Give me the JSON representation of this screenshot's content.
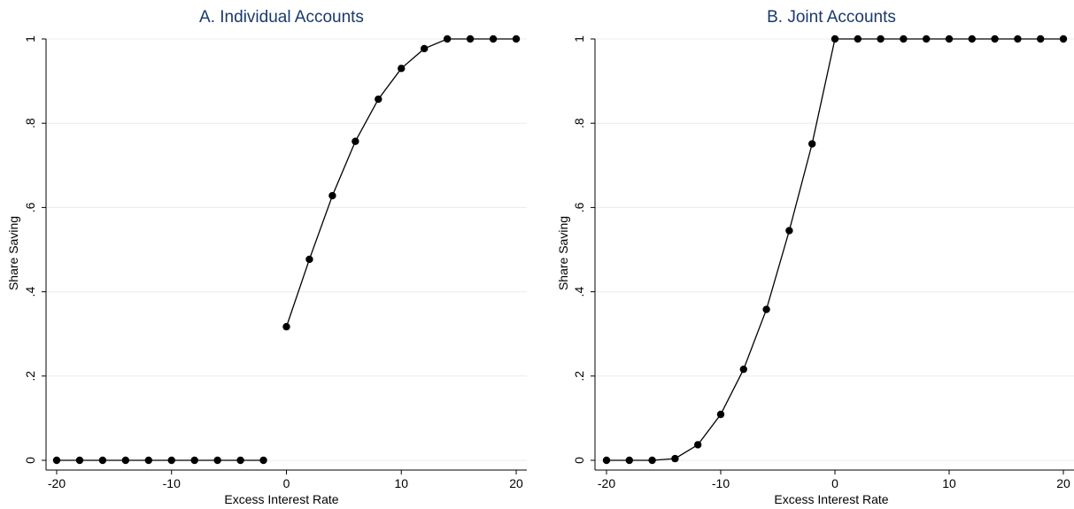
{
  "colors": {
    "title": "#1a3a6b",
    "grid": "#e8ecef",
    "series": "#000000",
    "axis": "#000000"
  },
  "chart_data": [
    {
      "type": "line",
      "title": "A. Individual Accounts",
      "xlabel": "Excess Interest Rate",
      "ylabel": "Share Saving",
      "xlim": [
        -20,
        20
      ],
      "ylim": [
        0,
        1
      ],
      "xticks": [
        "-20",
        "-10",
        "0",
        "10",
        "20"
      ],
      "yticks": [
        "0",
        ".2",
        ".4",
        ".6",
        ".8",
        "1"
      ],
      "grid": true,
      "series": [
        {
          "x": [
            -20,
            -18,
            -16,
            -14,
            -12,
            -10,
            -8,
            -6,
            -4,
            -2
          ],
          "y": [
            0,
            0,
            0,
            0,
            0,
            0,
            0,
            0,
            0,
            0
          ]
        },
        {
          "x": [
            0,
            2,
            4,
            6,
            8,
            10,
            12,
            14,
            16,
            18,
            20
          ],
          "y": [
            0.317,
            0.477,
            0.628,
            0.757,
            0.857,
            0.93,
            0.977,
            1,
            1,
            1,
            1
          ]
        }
      ]
    },
    {
      "type": "line",
      "title": "B. Joint Accounts",
      "xlabel": "Excess Interest Rate",
      "ylabel": "Share Saving",
      "xlim": [
        -20,
        20
      ],
      "ylim": [
        0,
        1
      ],
      "xticks": [
        "-20",
        "-10",
        "0",
        "10",
        "20"
      ],
      "yticks": [
        "0",
        ".2",
        ".4",
        ".6",
        ".8",
        "1"
      ],
      "grid": true,
      "series": [
        {
          "x": [
            -20,
            -18,
            -16,
            -14,
            -12,
            -10,
            -8,
            -6,
            -4,
            -2,
            0,
            2,
            4,
            6,
            8,
            10,
            12,
            14,
            16,
            18,
            20
          ],
          "y": [
            0,
            0,
            0,
            0.004,
            0.037,
            0.109,
            0.216,
            0.358,
            0.545,
            0.751,
            1,
            1,
            1,
            1,
            1,
            1,
            1,
            1,
            1,
            1,
            1
          ]
        }
      ]
    }
  ]
}
